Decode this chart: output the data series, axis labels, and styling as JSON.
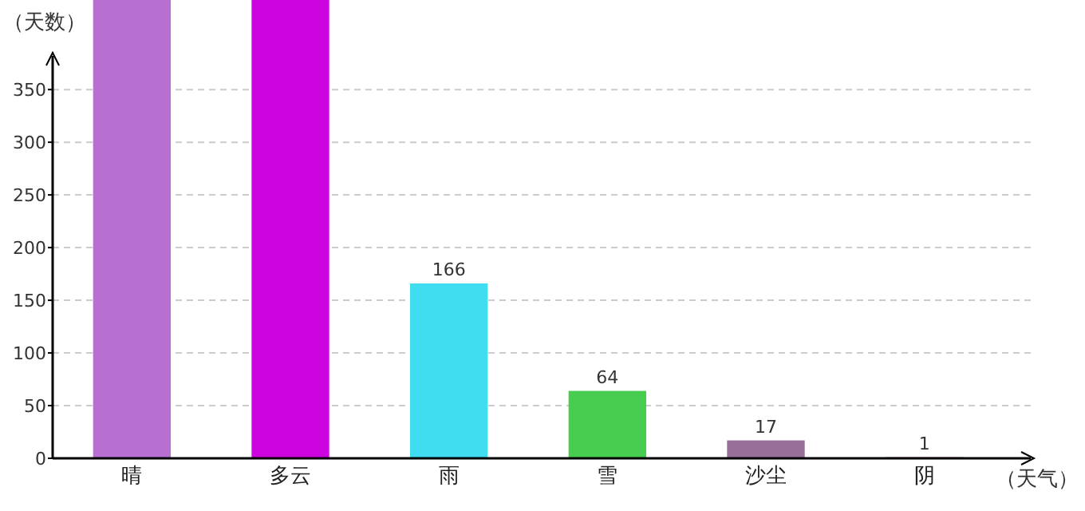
{
  "chart_data": {
    "type": "bar",
    "ylabel": "（天数）",
    "xlabel": "（天气）",
    "categories": [
      "晴",
      "多云",
      "雨",
      "雪",
      "沙尘",
      "阴"
    ],
    "values": [
      435,
      435,
      166,
      64,
      17,
      1
    ],
    "colors": [
      "#b86fd2",
      "#cc05e0",
      "#40dcf0",
      "#48cc50",
      "#967099",
      "#a040a0"
    ],
    "value_labels": [
      null,
      null,
      "166",
      "64",
      "17",
      "1"
    ],
    "ylim": [
      0,
      435
    ],
    "yticks": [
      0,
      50,
      100,
      150,
      200,
      250,
      300,
      350
    ],
    "grid": "y"
  }
}
